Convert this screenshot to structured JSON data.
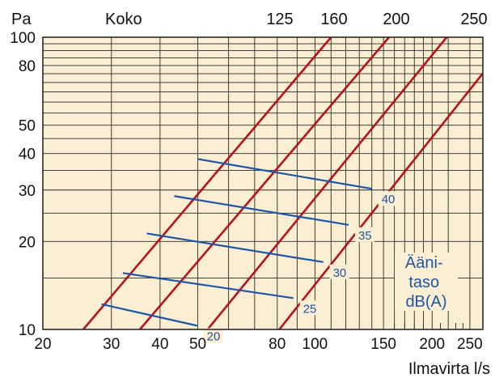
{
  "chart_data": {
    "type": "line",
    "title": "",
    "y_unit_label": "Pa",
    "size_header_label": "Koko",
    "xlabel": "Ilmavirta l/s",
    "x_scale": "log",
    "y_scale": "log",
    "xlim": [
      20,
      270
    ],
    "ylim": [
      10,
      100
    ],
    "x_tick_labels": [
      "20",
      "30",
      "40",
      "50",
      "80",
      "100",
      "150",
      "200",
      "250"
    ],
    "x_ticks": [
      20,
      30,
      40,
      50,
      80,
      100,
      150,
      200,
      250
    ],
    "y_tick_labels": [
      "10",
      "20",
      "30",
      "40",
      "50",
      "80",
      "100"
    ],
    "y_ticks": [
      10,
      20,
      30,
      40,
      50,
      80,
      100
    ],
    "grid": true,
    "colors": {
      "background": "#fbeed3",
      "grid": "#2a2a2a",
      "size_lines": "#b5121b",
      "sound_lines": "#1f56a3",
      "sound_text": "#1f56a3"
    },
    "series": [
      {
        "name": "125",
        "x": [
          25.4,
          110
        ],
        "y": [
          10,
          100
        ]
      },
      {
        "name": "160",
        "x": [
          35.5,
          155
        ],
        "y": [
          10,
          100
        ]
      },
      {
        "name": "200",
        "x": [
          53,
          218
        ],
        "y": [
          10,
          100
        ]
      },
      {
        "name": "250",
        "x": [
          81,
          320
        ],
        "y": [
          10,
          100
        ]
      }
    ],
    "sound_level_title": [
      "Ääni-",
      "taso",
      "dB(A)"
    ],
    "sound_level_lines": [
      {
        "label": "20",
        "x": [
          28.3,
          49.8
        ],
        "y": [
          12.2,
          10.3
        ]
      },
      {
        "label": "25",
        "x": [
          32.1,
          88
        ],
        "y": [
          15.6,
          12.8
        ]
      },
      {
        "label": "30",
        "x": [
          37,
          105
        ],
        "y": [
          21.3,
          17.0
        ]
      },
      {
        "label": "35",
        "x": [
          43.5,
          122
        ],
        "y": [
          28.6,
          22.8
        ]
      },
      {
        "label": "40",
        "x": [
          50,
          140
        ],
        "y": [
          38.3,
          30.3
        ]
      }
    ]
  }
}
